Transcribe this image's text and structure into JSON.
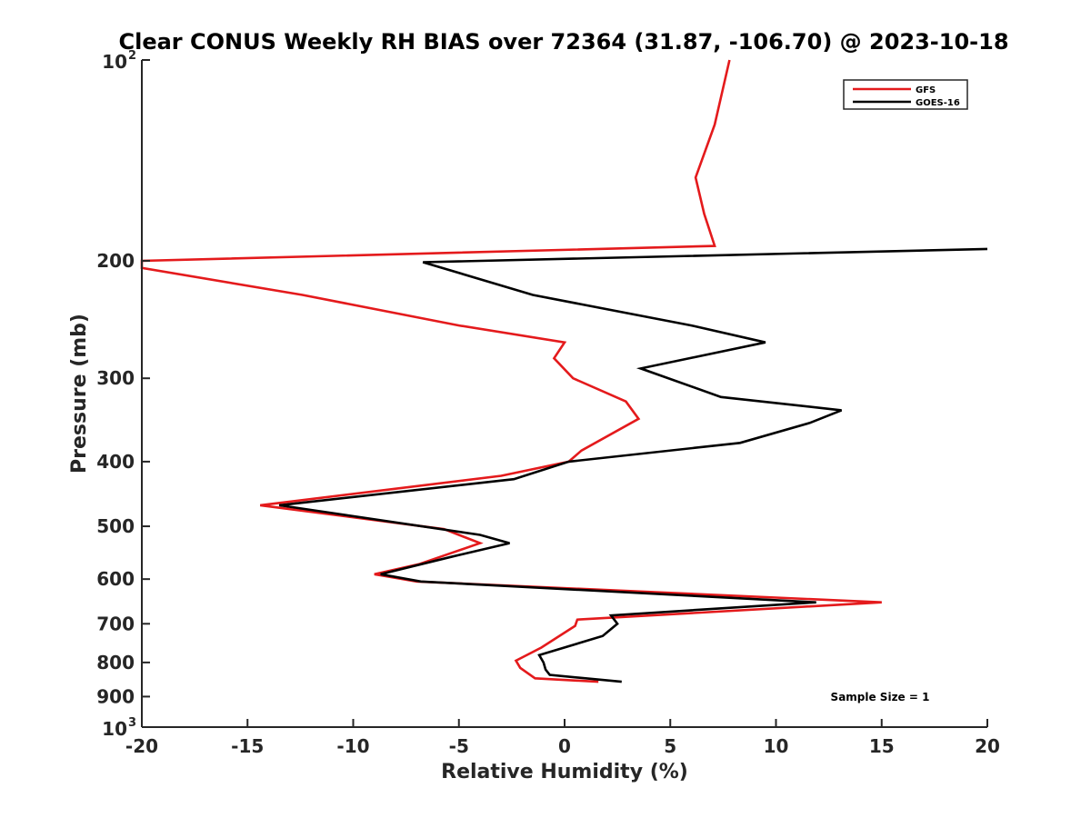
{
  "chart_data": {
    "type": "line",
    "title": "Clear CONUS Weekly RH BIAS over 72364 (31.87, -106.70) @ 2023-10-18",
    "xlabel": "Relative Humidity (%)",
    "ylabel": "Pressure (mb)",
    "xlim": [
      -20,
      20
    ],
    "ylim": [
      100,
      1000
    ],
    "y_scale": "log",
    "y_reversed": true,
    "x_ticks": [
      "-20",
      "-15",
      "-10",
      "-5",
      "0",
      "5",
      "10",
      "15",
      "20"
    ],
    "y_ticks": [
      {
        "value": 100,
        "base": "10",
        "exp": "2"
      },
      {
        "value": 200,
        "label": "200"
      },
      {
        "value": 300,
        "label": "300"
      },
      {
        "value": 400,
        "label": "400"
      },
      {
        "value": 500,
        "label": "500"
      },
      {
        "value": 600,
        "label": "600"
      },
      {
        "value": 700,
        "label": "700"
      },
      {
        "value": 800,
        "label": "800"
      },
      {
        "value": 900,
        "label": "900"
      },
      {
        "value": 1000,
        "base": "10",
        "exp": "3"
      }
    ],
    "legend_position": "top-right",
    "annotation": "Sample Size = 1",
    "series": [
      {
        "name": "GFS",
        "color": "#e41a1c",
        "points": [
          [
            7.8,
            100
          ],
          [
            7.1,
            125
          ],
          [
            6.2,
            150
          ],
          [
            6.6,
            170
          ],
          [
            7.1,
            190
          ],
          [
            -20,
            200
          ],
          [
            -20,
            205
          ],
          [
            -12.4,
            225
          ],
          [
            -5,
            250
          ],
          [
            0,
            265
          ],
          [
            -0.5,
            280
          ],
          [
            0.4,
            300
          ],
          [
            2.9,
            325
          ],
          [
            3.5,
            345
          ],
          [
            0.8,
            385
          ],
          [
            0.2,
            400
          ],
          [
            -3,
            420
          ],
          [
            -14.4,
            465
          ],
          [
            -5.7,
            505
          ],
          [
            -4,
            530
          ],
          [
            -6.9,
            570
          ],
          [
            -9,
            590
          ],
          [
            -7,
            605
          ],
          [
            15,
            650
          ],
          [
            0.6,
            690
          ],
          [
            0.5,
            705
          ],
          [
            -1.1,
            760
          ],
          [
            -2.3,
            795
          ],
          [
            -2.1,
            815
          ],
          [
            -1.4,
            845
          ],
          [
            1.6,
            855
          ]
        ]
      },
      {
        "name": "GOES-16",
        "color": "#000000",
        "points": [
          [
            20,
            192
          ],
          [
            -6.7,
            201
          ],
          [
            -1.5,
            225
          ],
          [
            6,
            250
          ],
          [
            9.5,
            265
          ],
          [
            3.6,
            290
          ],
          [
            7.4,
            320
          ],
          [
            13.1,
            335
          ],
          [
            11.6,
            350
          ],
          [
            8.3,
            375
          ],
          [
            0.2,
            400
          ],
          [
            -2.4,
            425
          ],
          [
            -13.5,
            465
          ],
          [
            -4,
            515
          ],
          [
            -2.6,
            530
          ],
          [
            -5.3,
            555
          ],
          [
            -8.7,
            590
          ],
          [
            -6.8,
            605
          ],
          [
            11.9,
            650
          ],
          [
            2.2,
            680
          ],
          [
            2.5,
            700
          ],
          [
            1.8,
            730
          ],
          [
            -1.2,
            780
          ],
          [
            -1,
            800
          ],
          [
            -0.9,
            820
          ],
          [
            -0.7,
            835
          ],
          [
            2.7,
            855
          ]
        ]
      }
    ]
  }
}
